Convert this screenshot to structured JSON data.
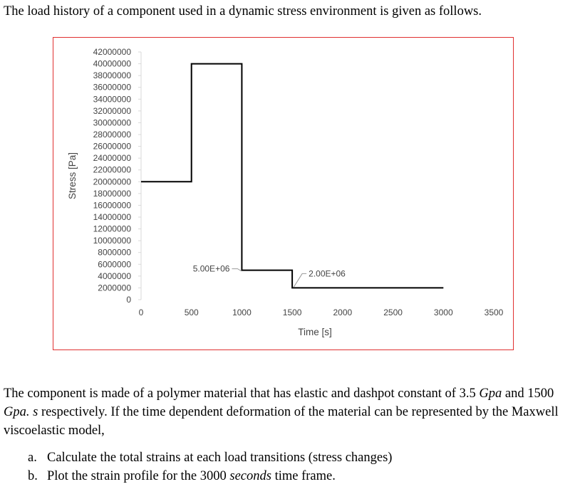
{
  "intro_text": "The load history of a component used in a dynamic stress environment is given as follows.",
  "chart_data": {
    "type": "line",
    "xlabel": "Time [s]",
    "ylabel": "Stress [Pa]",
    "xlim": [
      0,
      3500
    ],
    "ylim": [
      0,
      42000000
    ],
    "x_ticks": [
      "0",
      "500",
      "1000",
      "1500",
      "2000",
      "2500",
      "3000",
      "3500"
    ],
    "x_tick_values": [
      0,
      500,
      1000,
      1500,
      2000,
      2500,
      3000,
      3500
    ],
    "y_ticks": [
      "42000000",
      "40000000",
      "38000000",
      "36000000",
      "34000000",
      "32000000",
      "30000000",
      "28000000",
      "26000000",
      "24000000",
      "22000000",
      "20000000",
      "18000000",
      "16000000",
      "14000000",
      "12000000",
      "10000000",
      "8000000",
      "6000000",
      "4000000",
      "2000000",
      "0"
    ],
    "y_tick_values": [
      42000000,
      40000000,
      38000000,
      36000000,
      34000000,
      32000000,
      30000000,
      28000000,
      26000000,
      24000000,
      22000000,
      20000000,
      18000000,
      16000000,
      14000000,
      12000000,
      10000000,
      8000000,
      6000000,
      4000000,
      2000000,
      0
    ],
    "series": [
      {
        "name": "Stress",
        "x": [
          0,
          500,
          500,
          1000,
          1000,
          1500,
          1500,
          3000
        ],
        "y": [
          20000000,
          20000000,
          40000000,
          40000000,
          5000000,
          5000000,
          2000000,
          2000000
        ]
      }
    ],
    "annotations": [
      {
        "text": "5.00E+06",
        "x": 1000,
        "y": 5000000
      },
      {
        "text": "2.00E+06",
        "x": 1500,
        "y": 2000000
      }
    ],
    "line_color": "#000000"
  },
  "paragraph": {
    "part1": "The component is made of a polymer material that has elastic and dashpot constant of 3.5 ",
    "unit1": "Gpa",
    "part2": " and 1500 ",
    "unit2": "Gpa. s",
    "part3": " respectively. If the time dependent deformation of the material can be represented by the Maxwell viscoelastic model,"
  },
  "tasks": [
    {
      "label": "a.",
      "text": "Calculate the total strains at each load transitions (stress changes)"
    },
    {
      "label": "b.",
      "text_before": "Plot the strain profile for the 3000 ",
      "italic": "seconds",
      "text_after": " time frame."
    }
  ]
}
